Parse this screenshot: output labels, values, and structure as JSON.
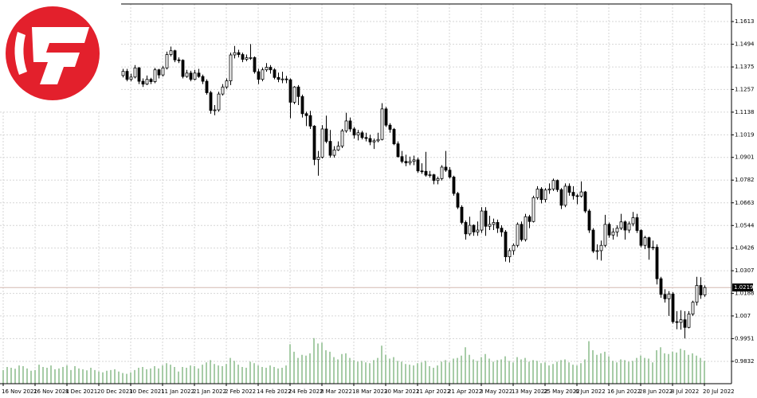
{
  "chart_data": {
    "type": "candlestick",
    "categories": [
      "16 Nov 2021",
      null,
      null,
      null,
      null,
      null,
      null,
      null,
      "26 Nov 2021",
      null,
      null,
      null,
      null,
      null,
      null,
      null,
      "8 Dec 2021",
      null,
      null,
      null,
      null,
      null,
      null,
      null,
      "20 Dec 2021",
      null,
      null,
      null,
      null,
      null,
      null,
      null,
      "30 Dec 2021",
      null,
      null,
      null,
      null,
      null,
      null,
      null,
      "11 Jan 2022",
      null,
      null,
      null,
      null,
      null,
      null,
      null,
      "21 Jan 2022",
      null,
      null,
      null,
      null,
      null,
      null,
      null,
      "2 Feb 2022",
      null,
      null,
      null,
      null,
      null,
      null,
      null,
      "14 Feb 2022",
      null,
      null,
      null,
      null,
      null,
      null,
      null,
      "24 Feb 2022",
      null,
      null,
      null,
      null,
      null,
      null,
      null,
      "8 Mar 2022",
      null,
      null,
      null,
      null,
      null,
      null,
      null,
      "18 Mar 2022",
      null,
      null,
      null,
      null,
      null,
      null,
      null,
      "30 Mar 2022",
      null,
      null,
      null,
      null,
      null,
      null,
      null,
      "11 Apr 2022",
      null,
      null,
      null,
      null,
      null,
      null,
      null,
      "21 Apr 2022",
      null,
      null,
      null,
      null,
      null,
      null,
      null,
      "3 May 2022",
      null,
      null,
      null,
      null,
      null,
      null,
      null,
      "13 May 2022",
      null,
      null,
      null,
      null,
      null,
      null,
      null,
      "25 May 2022",
      null,
      null,
      null,
      null,
      null,
      null,
      null,
      "6 Jun 2022",
      null,
      null,
      null,
      null,
      null,
      null,
      null,
      "16 Jun 2022",
      null,
      null,
      null,
      null,
      null,
      null,
      null,
      "28 Jun 2022",
      null,
      null,
      null,
      null,
      null,
      null,
      null,
      "8 Jul 2022",
      null,
      null,
      null,
      null,
      null,
      null,
      null,
      "20 Jul 2022"
    ],
    "ohlc": [
      [
        1.1375,
        1.1385,
        1.13,
        1.132
      ],
      [
        1.132,
        1.134,
        1.1305,
        1.1318
      ],
      [
        1.1318,
        1.1385,
        1.131,
        1.137
      ],
      [
        1.137,
        1.1375,
        1.128,
        1.129
      ],
      [
        1.129,
        1.13,
        1.1225,
        1.124
      ],
      [
        1.124,
        1.1265,
        1.1225,
        1.125
      ],
      [
        1.125,
        1.1262,
        1.1186,
        1.12
      ],
      [
        1.12,
        1.1235,
        1.119,
        1.121
      ],
      [
        1.121,
        1.133,
        1.12,
        1.132
      ],
      [
        1.132,
        1.138,
        1.1275,
        1.129
      ],
      [
        1.129,
        1.135,
        1.128,
        1.1335
      ],
      [
        1.1335,
        1.1345,
        1.13,
        1.1322
      ],
      [
        1.1322,
        1.135,
        1.1295,
        1.131
      ],
      [
        1.131,
        1.132,
        1.127,
        1.1285
      ],
      [
        1.1285,
        1.133,
        1.1275,
        1.1314
      ],
      [
        1.1314,
        1.133,
        1.127,
        1.1285
      ],
      [
        1.1285,
        1.1355,
        1.1255,
        1.1262
      ],
      [
        1.1262,
        1.13,
        1.125,
        1.1285
      ],
      [
        1.1285,
        1.134,
        1.127,
        1.133
      ],
      [
        1.133,
        1.136,
        1.1265,
        1.1275
      ],
      [
        1.1275,
        1.13,
        1.126,
        1.1282
      ],
      [
        1.1282,
        1.134,
        1.1275,
        1.1325
      ],
      [
        1.1325,
        1.1345,
        1.13,
        1.133
      ],
      [
        1.133,
        1.1335,
        1.125,
        1.126
      ],
      [
        1.126,
        1.13,
        1.1252,
        1.128
      ],
      [
        1.128,
        1.1305,
        1.127,
        1.129
      ],
      [
        1.129,
        1.1342,
        1.1285,
        1.133
      ],
      [
        1.133,
        1.1345,
        1.131,
        1.1328
      ],
      [
        1.1328,
        1.134,
        1.1305,
        1.1322
      ],
      [
        1.1322,
        1.1338,
        1.1312,
        1.133
      ],
      [
        1.133,
        1.1365,
        1.132,
        1.1352
      ],
      [
        1.1352,
        1.1365,
        1.13,
        1.131
      ],
      [
        1.131,
        1.134,
        1.13,
        1.1322
      ],
      [
        1.1322,
        1.1385,
        1.1315,
        1.137
      ],
      [
        1.137,
        1.1375,
        1.1285,
        1.13
      ],
      [
        1.13,
        1.1315,
        1.127,
        1.1285
      ],
      [
        1.1285,
        1.133,
        1.128,
        1.131
      ],
      [
        1.131,
        1.1318,
        1.1285,
        1.1298
      ],
      [
        1.1298,
        1.137,
        1.129,
        1.136
      ],
      [
        1.136,
        1.1365,
        1.1315,
        1.1333
      ],
      [
        1.1333,
        1.138,
        1.1325,
        1.137
      ],
      [
        1.137,
        1.1455,
        1.1362,
        1.144
      ],
      [
        1.144,
        1.1482,
        1.143,
        1.146
      ],
      [
        1.146,
        1.1465,
        1.14,
        1.1412
      ],
      [
        1.1412,
        1.1425,
        1.1395,
        1.141
      ],
      [
        1.141,
        1.1415,
        1.1315,
        1.1325
      ],
      [
        1.1325,
        1.136,
        1.1318,
        1.1343
      ],
      [
        1.1343,
        1.1355,
        1.13,
        1.131
      ],
      [
        1.131,
        1.136,
        1.1305,
        1.1343
      ],
      [
        1.1343,
        1.1365,
        1.1318,
        1.1325
      ],
      [
        1.1325,
        1.1335,
        1.1285,
        1.13
      ],
      [
        1.13,
        1.131,
        1.123,
        1.124
      ],
      [
        1.124,
        1.125,
        1.113,
        1.1147
      ],
      [
        1.1147,
        1.1175,
        1.1122,
        1.115
      ],
      [
        1.115,
        1.1245,
        1.114,
        1.1233
      ],
      [
        1.1233,
        1.1285,
        1.1225,
        1.127
      ],
      [
        1.127,
        1.1315,
        1.126,
        1.1302
      ],
      [
        1.1302,
        1.145,
        1.128,
        1.1438
      ],
      [
        1.1438,
        1.1485,
        1.142,
        1.145
      ],
      [
        1.145,
        1.1465,
        1.1425,
        1.144
      ],
      [
        1.144,
        1.145,
        1.14,
        1.1415
      ],
      [
        1.1415,
        1.144,
        1.1405,
        1.1423
      ],
      [
        1.1423,
        1.1495,
        1.1412,
        1.1424
      ],
      [
        1.1424,
        1.143,
        1.134,
        1.135
      ],
      [
        1.135,
        1.1365,
        1.1285,
        1.131
      ],
      [
        1.131,
        1.1372,
        1.13,
        1.136
      ],
      [
        1.136,
        1.1395,
        1.135,
        1.1373
      ],
      [
        1.1373,
        1.1385,
        1.134,
        1.136
      ],
      [
        1.136,
        1.1368,
        1.131,
        1.132
      ],
      [
        1.132,
        1.1345,
        1.1295,
        1.131
      ],
      [
        1.131,
        1.135,
        1.129,
        1.1312
      ],
      [
        1.1312,
        1.1328,
        1.129,
        1.1308
      ],
      [
        1.1308,
        1.1315,
        1.1106,
        1.119
      ],
      [
        1.119,
        1.1275,
        1.118,
        1.127
      ],
      [
        1.127,
        1.128,
        1.1175,
        1.122
      ],
      [
        1.122,
        1.123,
        1.111,
        1.113
      ],
      [
        1.113,
        1.114,
        1.1065,
        1.112
      ],
      [
        1.112,
        1.1145,
        1.105,
        1.1065
      ],
      [
        1.1065,
        1.107,
        1.086,
        1.089
      ],
      [
        1.089,
        1.0935,
        1.0805,
        1.0902
      ],
      [
        1.0902,
        1.107,
        1.0895,
        1.105
      ],
      [
        1.105,
        1.112,
        1.0975,
        1.0985
      ],
      [
        1.0985,
        1.1045,
        1.09,
        1.0912
      ],
      [
        1.0912,
        1.096,
        1.09,
        1.094
      ],
      [
        1.094,
        1.0985,
        1.0935,
        1.096
      ],
      [
        1.096,
        1.105,
        1.095,
        1.104
      ],
      [
        1.104,
        1.1135,
        1.103,
        1.1092
      ],
      [
        1.1092,
        1.111,
        1.1035,
        1.105
      ],
      [
        1.105,
        1.106,
        1.1,
        1.1018
      ],
      [
        1.1018,
        1.1045,
        1.099,
        1.103
      ],
      [
        1.103,
        1.104,
        1.0995,
        1.1005
      ],
      [
        1.1005,
        1.103,
        1.0985,
        1.1
      ],
      [
        1.1,
        1.102,
        1.0965,
        1.0982
      ],
      [
        1.0982,
        1.1,
        1.0945,
        1.0988
      ],
      [
        1.0988,
        1.103,
        1.098,
        1.0995
      ],
      [
        1.0995,
        1.1185,
        1.099,
        1.1155
      ],
      [
        1.1155,
        1.1165,
        1.106,
        1.107
      ],
      [
        1.107,
        1.108,
        1.103,
        1.1048
      ],
      [
        1.1048,
        1.1055,
        1.0965,
        1.0972
      ],
      [
        1.0972,
        1.0985,
        1.09,
        1.0905
      ],
      [
        1.0905,
        1.0935,
        1.087,
        1.088
      ],
      [
        1.088,
        1.0915,
        1.0855,
        1.0872
      ],
      [
        1.0872,
        1.0905,
        1.086,
        1.088
      ],
      [
        1.088,
        1.091,
        1.086,
        1.0888
      ],
      [
        1.0888,
        1.09,
        1.082,
        1.083
      ],
      [
        1.083,
        1.087,
        1.0815,
        1.0828
      ],
      [
        1.0828,
        1.093,
        1.08,
        1.0808
      ],
      [
        1.0808,
        1.083,
        1.0795,
        1.081
      ],
      [
        1.081,
        1.0815,
        1.076,
        1.078
      ],
      [
        1.078,
        1.08,
        1.076,
        1.079
      ],
      [
        1.079,
        1.086,
        1.078,
        1.085
      ],
      [
        1.085,
        1.0935,
        1.0825,
        1.0834
      ],
      [
        1.0834,
        1.085,
        1.079,
        1.0798
      ],
      [
        1.0798,
        1.0805,
        1.07,
        1.0712
      ],
      [
        1.0712,
        1.072,
        1.063,
        1.064
      ],
      [
        1.064,
        1.065,
        1.055,
        1.056
      ],
      [
        1.056,
        1.057,
        1.047,
        1.05
      ],
      [
        1.05,
        1.059,
        1.049,
        1.0545
      ],
      [
        1.0545,
        1.055,
        1.049,
        1.051
      ],
      [
        1.051,
        1.0565,
        1.049,
        1.052
      ],
      [
        1.052,
        1.064,
        1.0505,
        1.062
      ],
      [
        1.062,
        1.064,
        1.049,
        1.054
      ],
      [
        1.054,
        1.0595,
        1.052,
        1.055
      ],
      [
        1.055,
        1.058,
        1.052,
        1.056
      ],
      [
        1.056,
        1.0575,
        1.0505,
        1.053
      ],
      [
        1.053,
        1.0545,
        1.0485,
        1.051
      ],
      [
        1.051,
        1.052,
        1.0355,
        1.038
      ],
      [
        1.038,
        1.0425,
        1.035,
        1.0412
      ],
      [
        1.0412,
        1.045,
        1.039,
        1.044
      ],
      [
        1.044,
        1.056,
        1.043,
        1.055
      ],
      [
        1.055,
        1.0565,
        1.046,
        1.047
      ],
      [
        1.047,
        1.0605,
        1.046,
        1.059
      ],
      [
        1.059,
        1.06,
        1.053,
        1.0565
      ],
      [
        1.0565,
        1.07,
        1.056,
        1.069
      ],
      [
        1.069,
        1.075,
        1.068,
        1.0735
      ],
      [
        1.0735,
        1.0745,
        1.066,
        1.068
      ],
      [
        1.068,
        1.074,
        1.0665,
        1.073
      ],
      [
        1.073,
        1.0765,
        1.071,
        1.0735
      ],
      [
        1.0735,
        1.079,
        1.0725,
        1.078
      ],
      [
        1.078,
        1.0785,
        1.072,
        1.0732
      ],
      [
        1.0732,
        1.074,
        1.063,
        1.065
      ],
      [
        1.065,
        1.0765,
        1.064,
        1.075
      ],
      [
        1.075,
        1.0765,
        1.07,
        1.0718
      ],
      [
        1.0718,
        1.075,
        1.068,
        1.07
      ],
      [
        1.07,
        1.071,
        1.0655,
        1.0698
      ],
      [
        1.0698,
        1.0775,
        1.069,
        1.072
      ],
      [
        1.072,
        1.0725,
        1.061,
        1.062
      ],
      [
        1.062,
        1.063,
        1.0505,
        1.052
      ],
      [
        1.052,
        1.053,
        1.04,
        1.041
      ],
      [
        1.041,
        1.0445,
        1.0365,
        1.0412
      ],
      [
        1.0412,
        1.0465,
        1.036,
        1.044
      ],
      [
        1.044,
        1.06,
        1.043,
        1.055
      ],
      [
        1.055,
        1.056,
        1.048,
        1.0494
      ],
      [
        1.0494,
        1.053,
        1.047,
        1.051
      ],
      [
        1.051,
        1.0545,
        1.0485,
        1.053
      ],
      [
        1.053,
        1.0605,
        1.052,
        1.0563
      ],
      [
        1.0563,
        1.057,
        1.047,
        1.052
      ],
      [
        1.052,
        1.0565,
        1.0505,
        1.0553
      ],
      [
        1.0553,
        1.0615,
        1.054,
        1.0585
      ],
      [
        1.0585,
        1.0605,
        1.0505,
        1.0518
      ],
      [
        1.0518,
        1.0525,
        1.043,
        1.044
      ],
      [
        1.044,
        1.049,
        1.042,
        1.048
      ],
      [
        1.048,
        1.0485,
        1.0365,
        1.0428
      ],
      [
        1.0428,
        1.0465,
        1.0415,
        1.043
      ],
      [
        1.043,
        1.0445,
        1.0235,
        1.0265
      ],
      [
        1.0265,
        1.0275,
        1.0165,
        1.0183
      ],
      [
        1.0183,
        1.021,
        1.014,
        1.016
      ],
      [
        1.016,
        1.02,
        1.007,
        1.0185
      ],
      [
        1.0185,
        1.0195,
        1.003,
        1.004
      ],
      [
        1.004,
        1.0095,
        1.0,
        1.0036
      ],
      [
        1.0036,
        1.01,
        0.9998,
        1.005
      ],
      [
        1.005,
        1.0095,
        0.9952,
        1.001
      ],
      [
        1.001,
        1.0095,
        1.0005,
        1.008
      ],
      [
        1.008,
        1.015,
        1.007,
        1.0142
      ],
      [
        1.0142,
        1.0275,
        1.0125,
        1.023
      ],
      [
        1.023,
        1.0273,
        1.016,
        1.018
      ],
      [
        1.018,
        1.023,
        1.017,
        1.0219
      ]
    ],
    "volume": [
      9000,
      11000,
      10500,
      9800,
      12000,
      11500,
      10000,
      8500,
      9000,
      12500,
      11000,
      10500,
      12000,
      9500,
      10000,
      11000,
      12000,
      9000,
      11500,
      10000,
      9500,
      8800,
      10500,
      9000,
      8000,
      7500,
      8500,
      9000,
      9500,
      8000,
      7000,
      6500,
      7500,
      9000,
      10500,
      11000,
      9500,
      10000,
      11500,
      10000,
      12000,
      13500,
      12500,
      11000,
      8000,
      11000,
      10500,
      12000,
      11500,
      10000,
      12500,
      14000,
      15500,
      13000,
      12000,
      11500,
      13000,
      17000,
      15000,
      12500,
      11000,
      10500,
      14500,
      13500,
      12000,
      11000,
      10500,
      12000,
      11000,
      10000,
      10500,
      12000,
      26000,
      21000,
      17000,
      19000,
      18500,
      20000,
      30000,
      26500,
      27000,
      22000,
      21000,
      17500,
      16000,
      19500,
      20000,
      17000,
      15500,
      14500,
      15000,
      14000,
      13500,
      15500,
      17000,
      25000,
      19000,
      16500,
      17500,
      15000,
      14500,
      13000,
      12500,
      12000,
      13500,
      14000,
      15000,
      11500,
      10500,
      12000,
      14500,
      15500,
      14000,
      16500,
      17000,
      18500,
      24000,
      19000,
      16000,
      15000,
      17500,
      19500,
      16500,
      14500,
      15500,
      16000,
      18000,
      15000,
      14000,
      17500,
      16000,
      17000,
      14500,
      15500,
      15000,
      13500,
      14000,
      12000,
      13000,
      14500,
      15500,
      16000,
      14000,
      12500,
      12000,
      13500,
      16000,
      28000,
      22000,
      19000,
      20000,
      21000,
      18000,
      15000,
      14000,
      16000,
      15500,
      14500,
      15000,
      17000,
      18500,
      17000,
      16500,
      14000,
      22000,
      24000,
      20000,
      19500,
      21000,
      20500,
      23000,
      22000,
      19000,
      20000,
      18500,
      17000,
      15000
    ],
    "volume_lim": [
      0,
      250000
    ],
    "ylim": [
      0.9715,
      1.1705
    ],
    "yticks": [
      1.1613,
      1.1494,
      1.1375,
      1.1257,
      1.1138,
      1.1019,
      1.0901,
      1.0782,
      1.0663,
      1.0544,
      1.0426,
      1.0307,
      1.0188,
      1.007,
      0.9951,
      0.9832
    ],
    "current_price": 1.0219,
    "grid": true,
    "bull_color": "#ffffff",
    "bear_color": "#000000",
    "outline_color": "#000000",
    "volume_color": "#4f9a4f",
    "price_line_color": "#d4b8b0"
  }
}
